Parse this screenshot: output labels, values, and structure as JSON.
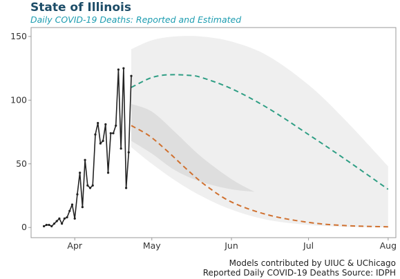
{
  "header": {
    "title": "State of Illinois",
    "subtitle": "Daily COVID-19 Deaths: Reported and Estimated"
  },
  "footer": {
    "models_credit": "Models contributed by UIUC & UChicago",
    "source": "Reported Daily COVID-19 Deaths Source: IDPH"
  },
  "colors": {
    "reported": "#222222",
    "upper_projection": "#2e9e84",
    "lower_projection": "#d0702e",
    "outer_band": "#efefef",
    "inner_band": "#dedede",
    "frame": "#999999"
  },
  "chart_data": {
    "type": "line",
    "title": "State of Illinois",
    "subtitle": "Daily COVID-19 Deaths: Reported and Estimated",
    "xlabel": "",
    "ylabel": "",
    "x_axis": {
      "type": "date",
      "range": [
        "2020-03-15",
        "2020-08-04"
      ],
      "ticks": [
        {
          "date": "2020-04-01",
          "label": "Apr"
        },
        {
          "date": "2020-05-01",
          "label": "May"
        },
        {
          "date": "2020-06-01",
          "label": "Jun"
        },
        {
          "date": "2020-07-01",
          "label": "Jul"
        },
        {
          "date": "2020-08-01",
          "label": "Aug"
        }
      ]
    },
    "ylim": [
      -8,
      157
    ],
    "yticks": [
      0,
      50,
      100,
      150
    ],
    "grid": false,
    "legend": "none",
    "reported": {
      "style": "line with point markers",
      "dates": [
        "2020-03-20",
        "2020-03-21",
        "2020-03-22",
        "2020-03-23",
        "2020-03-24",
        "2020-03-25",
        "2020-03-26",
        "2020-03-27",
        "2020-03-28",
        "2020-03-29",
        "2020-03-30",
        "2020-03-31",
        "2020-04-01",
        "2020-04-02",
        "2020-04-03",
        "2020-04-04",
        "2020-04-05",
        "2020-04-06",
        "2020-04-07",
        "2020-04-08",
        "2020-04-09",
        "2020-04-10",
        "2020-04-11",
        "2020-04-12",
        "2020-04-13",
        "2020-04-14",
        "2020-04-15",
        "2020-04-16",
        "2020-04-17",
        "2020-04-18",
        "2020-04-19",
        "2020-04-20"
      ],
      "values": [
        1,
        2,
        2,
        1,
        3,
        5,
        7,
        3,
        7,
        8,
        13,
        18,
        7,
        26,
        43,
        16,
        53,
        33,
        31,
        33,
        73,
        82,
        66,
        68,
        81,
        43,
        74,
        74,
        80,
        124,
        62,
        125
      ]
    },
    "reported_tail": {
      "dates": [
        "2020-04-21",
        "2020-04-22",
        "2020-04-23"
      ],
      "values": [
        31,
        59,
        119
      ]
    },
    "projections": [
      {
        "style": "dashed",
        "color": "#2e9e84",
        "dates": [
          "2020-04-23",
          "2020-04-30",
          "2020-05-05",
          "2020-05-10",
          "2020-05-15",
          "2020-05-20",
          "2020-06-01",
          "2020-06-15",
          "2020-07-01",
          "2020-07-15",
          "2020-08-01"
        ],
        "values": [
          110,
          117,
          119.5,
          120,
          119.5,
          118,
          109,
          94,
          73,
          54,
          30
        ]
      },
      {
        "style": "dashed",
        "color": "#d0702e",
        "dates": [
          "2020-04-23",
          "2020-04-30",
          "2020-05-07",
          "2020-05-15",
          "2020-05-22",
          "2020-06-01",
          "2020-06-15",
          "2020-07-01",
          "2020-07-15",
          "2020-08-01"
        ],
        "values": [
          80,
          72,
          60,
          45,
          33,
          20,
          10,
          4,
          1.5,
          0.5
        ]
      }
    ],
    "bands": [
      {
        "name": "outer",
        "color": "#efefef",
        "dates": [
          "2020-04-23",
          "2020-05-01",
          "2020-05-10",
          "2020-05-20",
          "2020-06-01",
          "2020-06-15",
          "2020-07-01",
          "2020-07-15",
          "2020-08-01"
        ],
        "upper": [
          140,
          147,
          150,
          150,
          146,
          135,
          112,
          85,
          48
        ],
        "lower": [
          63,
          50,
          37,
          25,
          14,
          6,
          2,
          0.5,
          0
        ]
      },
      {
        "name": "inner",
        "color": "#dedede",
        "dates": [
          "2020-04-23",
          "2020-05-01",
          "2020-05-10",
          "2020-05-20",
          "2020-06-01",
          "2020-06-10"
        ],
        "upper": [
          97,
          91,
          75,
          56,
          38,
          28
        ],
        "lower": [
          68,
          58,
          45,
          36,
          30,
          28
        ]
      }
    ]
  }
}
